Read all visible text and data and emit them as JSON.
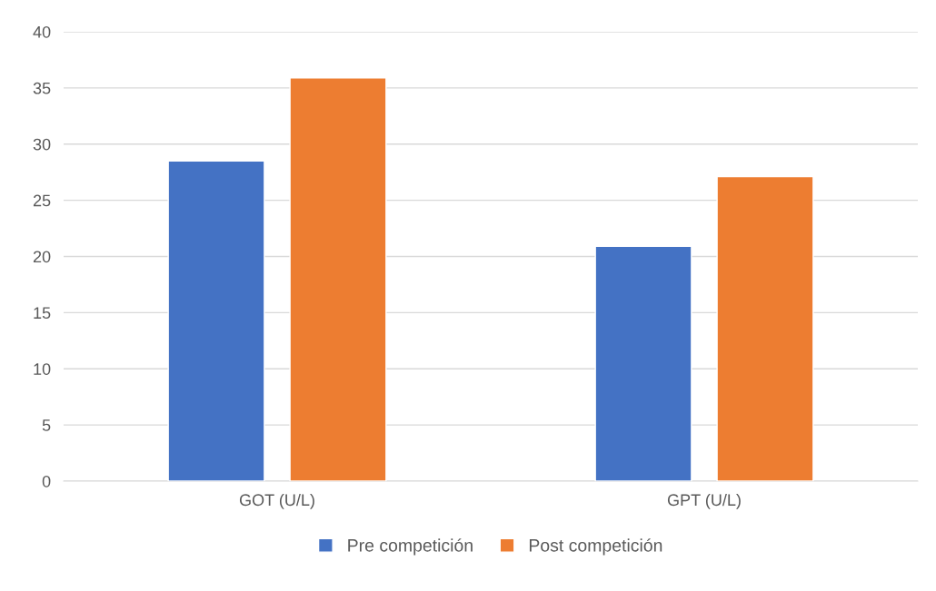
{
  "chart_data": {
    "type": "bar",
    "categories": [
      "GOT (U/L)",
      "GPT (U/L)"
    ],
    "series": [
      {
        "name": "Pre competición",
        "color": "#4472c4",
        "values": [
          28.5,
          20.9
        ]
      },
      {
        "name": "Post competición",
        "color": "#ed7d31",
        "values": [
          35.9,
          27.1
        ]
      }
    ],
    "ylim": [
      0,
      40
    ],
    "yticks": [
      0,
      5,
      10,
      15,
      20,
      25,
      30,
      35,
      40
    ],
    "grid": "y",
    "legend": "bottom"
  }
}
